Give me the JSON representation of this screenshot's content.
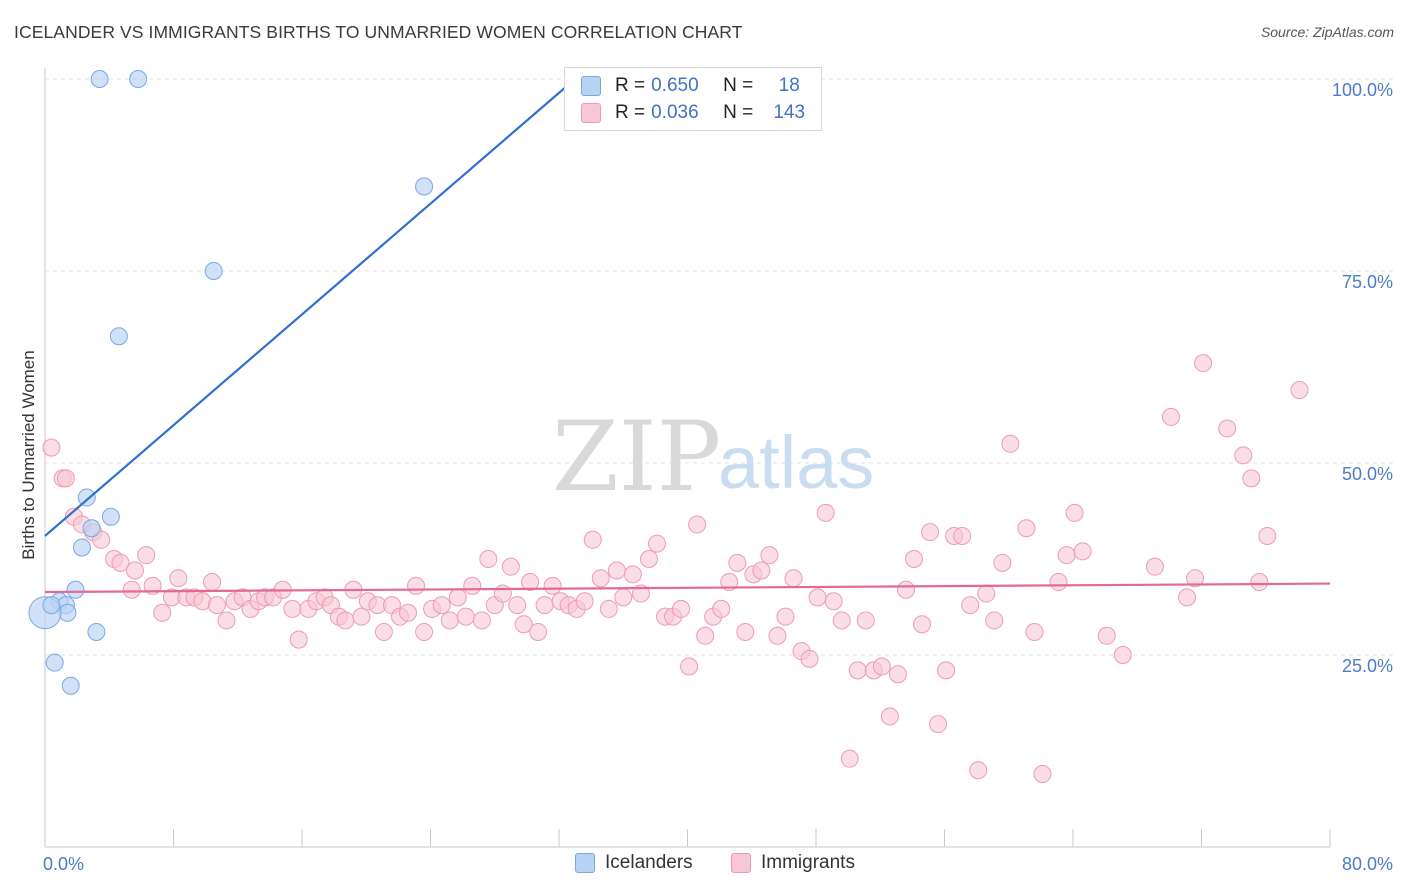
{
  "title": "ICELANDER VS IMMIGRANTS BIRTHS TO UNMARRIED WOMEN CORRELATION CHART",
  "source": "Source: ZipAtlas.com",
  "watermark": {
    "zip": "ZIP",
    "atlas": "atlas"
  },
  "stats": [
    {
      "r_label": "R =",
      "r_value": "0.650",
      "n_label": "N =",
      "n_value": "18"
    },
    {
      "r_label": "R =",
      "r_value": "0.036",
      "n_label": "N =",
      "n_value": "143"
    }
  ],
  "legend": [
    "Icelanders",
    "Immigrants"
  ],
  "colors": {
    "icelanders_fill": "#b8d2f4",
    "icelanders_stroke": "#7ba6e0",
    "icelanders_line": "#2f6fd1",
    "immigrants_fill": "#f9c6d5",
    "immigrants_stroke": "#ec9bb5",
    "immigrants_line": "#e26a93",
    "axis_label": "#4a7cc9"
  },
  "chart_data": {
    "type": "scatter",
    "title": "ICELANDER VS IMMIGRANTS BIRTHS TO UNMARRIED WOMEN CORRELATION CHART",
    "xlabel": "",
    "ylabel": "Births to Unmarried Women",
    "xlim": [
      0,
      80
    ],
    "ylim": [
      0,
      100
    ],
    "x_tick_labels": [
      "0.0%",
      "80.0%"
    ],
    "y_ticks": [
      25,
      50,
      75,
      100
    ],
    "y_tick_labels": [
      "25.0%",
      "50.0%",
      "75.0%",
      "100.0%"
    ],
    "series": [
      {
        "name": "Icelanders",
        "points": [
          [
            3.4,
            100
          ],
          [
            5.8,
            100
          ],
          [
            23.6,
            86
          ],
          [
            10.5,
            75
          ],
          [
            4.6,
            66.5
          ],
          [
            2.6,
            45.5
          ],
          [
            4.1,
            43
          ],
          [
            2.9,
            41.5
          ],
          [
            2.3,
            39
          ],
          [
            1.9,
            33.5
          ],
          [
            0.9,
            32
          ],
          [
            1.3,
            31.5
          ],
          [
            1.4,
            30.5
          ],
          [
            0.0,
            30.5
          ],
          [
            3.2,
            28
          ],
          [
            0.6,
            24
          ],
          [
            1.6,
            21
          ],
          [
            0.4,
            31.5
          ]
        ],
        "trendline": {
          "x": [
            0,
            33
          ],
          "y": [
            40.5,
            100
          ]
        }
      },
      {
        "name": "Immigrants",
        "points": [
          [
            0.4,
            52
          ],
          [
            1.1,
            48
          ],
          [
            1.3,
            48
          ],
          [
            1.8,
            43
          ],
          [
            2.3,
            42
          ],
          [
            3.0,
            41
          ],
          [
            3.5,
            40
          ],
          [
            4.3,
            37.5
          ],
          [
            4.7,
            37
          ],
          [
            5.6,
            36
          ],
          [
            6.3,
            38
          ],
          [
            5.4,
            33.5
          ],
          [
            6.7,
            34
          ],
          [
            7.3,
            30.5
          ],
          [
            7.9,
            32.5
          ],
          [
            8.3,
            35
          ],
          [
            8.8,
            32.5
          ],
          [
            9.3,
            32.5
          ],
          [
            9.8,
            32
          ],
          [
            10.4,
            34.5
          ],
          [
            10.7,
            31.5
          ],
          [
            11.3,
            29.5
          ],
          [
            11.8,
            32
          ],
          [
            12.3,
            32.5
          ],
          [
            12.8,
            31
          ],
          [
            13.3,
            32
          ],
          [
            13.7,
            32.5
          ],
          [
            14.2,
            32.5
          ],
          [
            14.8,
            33.5
          ],
          [
            15.4,
            31
          ],
          [
            15.8,
            27
          ],
          [
            16.4,
            31
          ],
          [
            16.9,
            32
          ],
          [
            17.4,
            32.5
          ],
          [
            17.8,
            31.5
          ],
          [
            18.3,
            30
          ],
          [
            18.7,
            29.5
          ],
          [
            19.2,
            33.5
          ],
          [
            19.7,
            30
          ],
          [
            20.1,
            32
          ],
          [
            20.7,
            31.5
          ],
          [
            21.1,
            28
          ],
          [
            21.6,
            31.5
          ],
          [
            22.1,
            30
          ],
          [
            22.6,
            30.5
          ],
          [
            23.1,
            34
          ],
          [
            23.6,
            28
          ],
          [
            24.1,
            31
          ],
          [
            24.7,
            31.5
          ],
          [
            25.2,
            29.5
          ],
          [
            25.7,
            32.5
          ],
          [
            26.2,
            30
          ],
          [
            26.6,
            34
          ],
          [
            27.2,
            29.5
          ],
          [
            27.6,
            37.5
          ],
          [
            28.0,
            31.5
          ],
          [
            28.5,
            33
          ],
          [
            29.0,
            36.5
          ],
          [
            29.4,
            31.5
          ],
          [
            29.8,
            29
          ],
          [
            30.2,
            34.5
          ],
          [
            30.7,
            28
          ],
          [
            31.1,
            31.5
          ],
          [
            31.6,
            34
          ],
          [
            32.1,
            32
          ],
          [
            32.6,
            31.5
          ],
          [
            33.1,
            31
          ],
          [
            33.6,
            32
          ],
          [
            34.1,
            40
          ],
          [
            34.6,
            35
          ],
          [
            35.1,
            31
          ],
          [
            35.6,
            36
          ],
          [
            36.0,
            32.5
          ],
          [
            36.6,
            35.5
          ],
          [
            37.1,
            33
          ],
          [
            37.6,
            37.5
          ],
          [
            38.1,
            39.5
          ],
          [
            38.6,
            30
          ],
          [
            39.1,
            30
          ],
          [
            39.6,
            31
          ],
          [
            40.1,
            23.5
          ],
          [
            40.6,
            42
          ],
          [
            41.1,
            27.5
          ],
          [
            41.6,
            30
          ],
          [
            42.1,
            31
          ],
          [
            42.6,
            34.5
          ],
          [
            43.1,
            37
          ],
          [
            43.6,
            28
          ],
          [
            44.1,
            35.5
          ],
          [
            44.6,
            36
          ],
          [
            45.1,
            38
          ],
          [
            45.6,
            27.5
          ],
          [
            46.1,
            30
          ],
          [
            46.6,
            35
          ],
          [
            47.1,
            25.5
          ],
          [
            47.6,
            24.5
          ],
          [
            48.1,
            32.5
          ],
          [
            48.6,
            43.5
          ],
          [
            49.1,
            32
          ],
          [
            49.6,
            29.5
          ],
          [
            50.1,
            11.5
          ],
          [
            50.6,
            23
          ],
          [
            51.1,
            29.5
          ],
          [
            51.6,
            23
          ],
          [
            52.1,
            23.5
          ],
          [
            52.6,
            17
          ],
          [
            53.1,
            22.5
          ],
          [
            53.6,
            33.5
          ],
          [
            54.1,
            37.5
          ],
          [
            54.6,
            29
          ],
          [
            55.1,
            41
          ],
          [
            55.6,
            16
          ],
          [
            56.1,
            23
          ],
          [
            56.6,
            40.5
          ],
          [
            57.1,
            40.5
          ],
          [
            57.6,
            31.5
          ],
          [
            58.1,
            10
          ],
          [
            58.6,
            33
          ],
          [
            59.1,
            29.5
          ],
          [
            59.6,
            37
          ],
          [
            60.1,
            52.5
          ],
          [
            61.1,
            41.5
          ],
          [
            61.6,
            28
          ],
          [
            62.1,
            9.5
          ],
          [
            63.1,
            34.5
          ],
          [
            63.6,
            38
          ],
          [
            64.1,
            43.5
          ],
          [
            64.6,
            38.5
          ],
          [
            66.1,
            27.5
          ],
          [
            67.1,
            25
          ],
          [
            69.1,
            36.5
          ],
          [
            70.1,
            56
          ],
          [
            71.1,
            32.5
          ],
          [
            71.6,
            35
          ],
          [
            72.1,
            63
          ],
          [
            73.6,
            54.5
          ],
          [
            74.6,
            51
          ],
          [
            75.1,
            48
          ],
          [
            75.6,
            34.5
          ],
          [
            76.1,
            40.5
          ],
          [
            78.1,
            59.5
          ]
        ],
        "trendline": {
          "x": [
            0,
            80
          ],
          "y": [
            33.2,
            34.3
          ]
        }
      }
    ]
  }
}
